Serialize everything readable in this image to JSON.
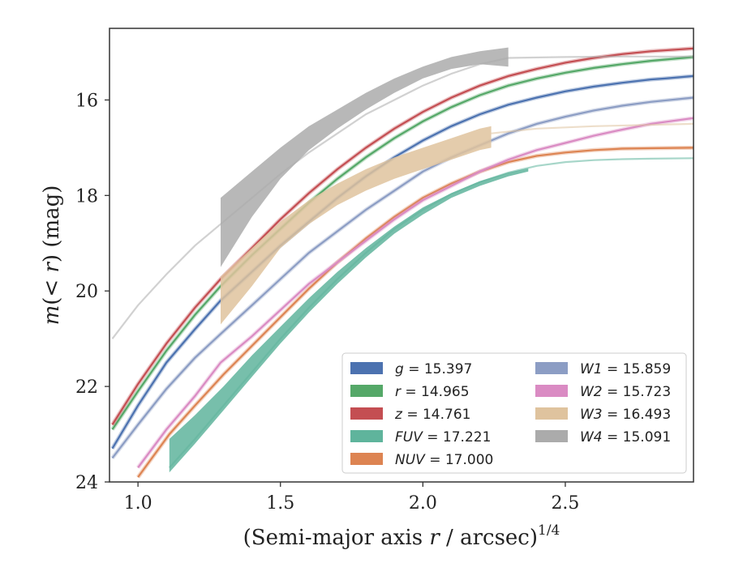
{
  "chart_data": {
    "type": "line",
    "xlabel": "(Semi-major axis r / arcsec)^1/4",
    "ylabel": "m(< r) (mag)",
    "xlim": [
      0.9,
      2.95
    ],
    "ylim": [
      24,
      14.5
    ],
    "y_inverted": true,
    "xticks": [
      "1.0",
      "1.5",
      "2.0",
      "2.5"
    ],
    "xtick_values": [
      1.0,
      1.5,
      2.0,
      2.5
    ],
    "yticks": [
      "16",
      "18",
      "20",
      "22",
      "24"
    ],
    "ytick_values": [
      16,
      18,
      20,
      22,
      24
    ],
    "grid": false,
    "legend_position": "lower-right",
    "series": [
      {
        "name": "g = 15.397",
        "label": "g",
        "total": "15.397",
        "color": "#4c72b0",
        "style": "line",
        "x": [
          0.91,
          1.0,
          1.1,
          1.2,
          1.29,
          1.4,
          1.5,
          1.6,
          1.7,
          1.8,
          1.9,
          2.0,
          2.1,
          2.2,
          2.3,
          2.4,
          2.5,
          2.6,
          2.7,
          2.8,
          2.85,
          2.95
        ],
        "y": [
          23.3,
          22.4,
          21.5,
          20.8,
          20.2,
          19.6,
          19.05,
          18.55,
          18.05,
          17.6,
          17.2,
          16.85,
          16.55,
          16.3,
          16.1,
          15.95,
          15.82,
          15.72,
          15.64,
          15.57,
          15.55,
          15.5
        ]
      },
      {
        "name": "r = 14.965",
        "label": "r",
        "total": "14.965",
        "color": "#55a868",
        "style": "line",
        "x": [
          0.91,
          1.0,
          1.1,
          1.2,
          1.29,
          1.4,
          1.5,
          1.6,
          1.7,
          1.8,
          1.9,
          2.0,
          2.1,
          2.2,
          2.3,
          2.4,
          2.5,
          2.6,
          2.7,
          2.8,
          2.95
        ],
        "y": [
          22.9,
          22.1,
          21.25,
          20.5,
          19.9,
          19.25,
          18.7,
          18.15,
          17.65,
          17.2,
          16.8,
          16.45,
          16.15,
          15.9,
          15.7,
          15.55,
          15.43,
          15.33,
          15.25,
          15.18,
          15.1
        ]
      },
      {
        "name": "z = 14.761",
        "label": "z",
        "total": "14.761",
        "color": "#c44e52",
        "style": "line",
        "x": [
          0.91,
          1.0,
          1.1,
          1.2,
          1.29,
          1.4,
          1.5,
          1.6,
          1.7,
          1.8,
          1.9,
          2.0,
          2.1,
          2.2,
          2.3,
          2.4,
          2.5,
          2.6,
          2.7,
          2.8,
          2.95
        ],
        "y": [
          22.8,
          21.95,
          21.1,
          20.35,
          19.75,
          19.1,
          18.5,
          17.95,
          17.45,
          17.0,
          16.6,
          16.25,
          15.95,
          15.7,
          15.5,
          15.35,
          15.22,
          15.12,
          15.04,
          14.98,
          14.92
        ]
      },
      {
        "name": "FUV = 17.221",
        "label": "FUV",
        "total": "17.221",
        "color": "#5fb49c",
        "style": "band",
        "x": [
          1.11,
          1.2,
          1.3,
          1.4,
          1.5,
          1.6,
          1.7,
          1.8,
          1.9,
          2.0,
          2.1,
          2.2,
          2.3,
          2.37
        ],
        "y_low": [
          23.8,
          23.2,
          22.5,
          21.8,
          21.1,
          20.45,
          19.85,
          19.3,
          18.8,
          18.4,
          18.05,
          17.8,
          17.6,
          17.5
        ],
        "y_high": [
          23.1,
          22.6,
          22.0,
          21.35,
          20.75,
          20.15,
          19.6,
          19.1,
          18.65,
          18.25,
          17.95,
          17.7,
          17.52,
          17.43
        ],
        "extension_x": [
          1.11,
          1.2,
          1.3,
          1.4,
          1.5,
          1.6,
          1.7,
          1.8,
          1.9,
          2.0,
          2.1,
          2.2,
          2.3,
          2.4,
          2.5,
          2.6,
          2.7,
          2.8,
          2.95
        ],
        "extension_y": [
          23.7,
          23.1,
          22.4,
          21.7,
          21.0,
          20.35,
          19.75,
          19.2,
          18.7,
          18.3,
          17.97,
          17.72,
          17.52,
          17.38,
          17.3,
          17.26,
          17.24,
          17.23,
          17.22
        ]
      },
      {
        "name": "NUV = 17.000",
        "label": "NUV",
        "total": "17.000",
        "color": "#dd8452",
        "style": "line",
        "x": [
          1.0,
          1.11,
          1.2,
          1.3,
          1.4,
          1.5,
          1.6,
          1.7,
          1.8,
          1.9,
          2.0,
          2.1,
          2.2,
          2.3,
          2.4,
          2.5,
          2.6,
          2.7,
          2.8,
          2.95
        ],
        "y": [
          23.9,
          23.0,
          22.4,
          21.75,
          21.15,
          20.55,
          19.95,
          19.4,
          18.9,
          18.45,
          18.05,
          17.75,
          17.5,
          17.3,
          17.17,
          17.1,
          17.05,
          17.02,
          17.01,
          17.0
        ]
      },
      {
        "name": "W1 = 15.859",
        "label": "W1",
        "total": "15.859",
        "color": "#8c9dc4",
        "style": "line",
        "x": [
          0.91,
          1.0,
          1.1,
          1.2,
          1.29,
          1.4,
          1.5,
          1.6,
          1.7,
          1.8,
          1.9,
          2.0,
          2.1,
          2.2,
          2.3,
          2.4,
          2.5,
          2.6,
          2.7,
          2.8,
          2.95
        ],
        "y": [
          23.5,
          22.8,
          22.05,
          21.4,
          20.9,
          20.3,
          19.75,
          19.2,
          18.75,
          18.3,
          17.9,
          17.5,
          17.2,
          16.95,
          16.7,
          16.5,
          16.35,
          16.22,
          16.12,
          16.04,
          15.95
        ]
      },
      {
        "name": "W2 = 15.723",
        "label": "W2",
        "total": "15.723",
        "color": "#da8bc3",
        "style": "line",
        "x": [
          1.0,
          1.1,
          1.2,
          1.29,
          1.4,
          1.5,
          1.6,
          1.7,
          1.8,
          1.9,
          2.0,
          2.1,
          2.2,
          2.3,
          2.4,
          2.5,
          2.6,
          2.7,
          2.8,
          2.95
        ],
        "y": [
          23.7,
          22.9,
          22.2,
          21.5,
          20.95,
          20.4,
          19.85,
          19.4,
          18.95,
          18.5,
          18.1,
          17.8,
          17.5,
          17.25,
          17.05,
          16.9,
          16.75,
          16.62,
          16.5,
          16.38
        ]
      },
      {
        "name": "W3 = 16.493",
        "label": "W3",
        "total": "16.493",
        "color": "#dfc39e",
        "style": "band",
        "x": [
          1.29,
          1.4,
          1.5,
          1.6,
          1.7,
          1.8,
          1.9,
          2.0,
          2.1,
          2.2,
          2.24
        ],
        "y_low": [
          20.7,
          19.9,
          19.1,
          18.6,
          18.2,
          17.9,
          17.65,
          17.45,
          17.25,
          17.05,
          17.0
        ],
        "y_high": [
          19.7,
          19.1,
          18.55,
          18.1,
          17.75,
          17.45,
          17.2,
          17.0,
          16.8,
          16.6,
          16.55
        ],
        "extension_x": [
          2.24,
          2.4,
          2.6,
          2.8,
          2.95
        ],
        "extension_y": [
          16.7,
          16.6,
          16.55,
          16.52,
          16.5
        ]
      },
      {
        "name": "W4 = 15.091",
        "label": "W4",
        "total": "15.091",
        "color": "#ababab",
        "style": "band",
        "x": [
          1.29,
          1.4,
          1.5,
          1.6,
          1.7,
          1.8,
          1.9,
          2.0,
          2.1,
          2.2,
          2.3
        ],
        "y_low": [
          19.5,
          18.45,
          17.65,
          17.05,
          16.6,
          16.2,
          15.85,
          15.55,
          15.35,
          15.25,
          15.3
        ],
        "y_high": [
          18.05,
          17.5,
          17.0,
          16.55,
          16.2,
          15.85,
          15.55,
          15.3,
          15.1,
          14.98,
          14.9
        ],
        "extension_x": [
          0.91,
          1.0,
          1.1,
          1.2,
          1.29,
          1.4,
          1.5,
          1.6,
          1.7,
          1.8,
          1.9,
          2.0,
          2.1,
          2.2,
          2.3,
          2.5,
          2.7,
          2.95
        ],
        "extension_y": [
          21.0,
          20.3,
          19.65,
          19.05,
          18.6,
          18.05,
          17.55,
          17.1,
          16.7,
          16.3,
          16.0,
          15.7,
          15.45,
          15.25,
          15.12,
          15.1,
          15.09,
          15.09
        ]
      }
    ]
  }
}
